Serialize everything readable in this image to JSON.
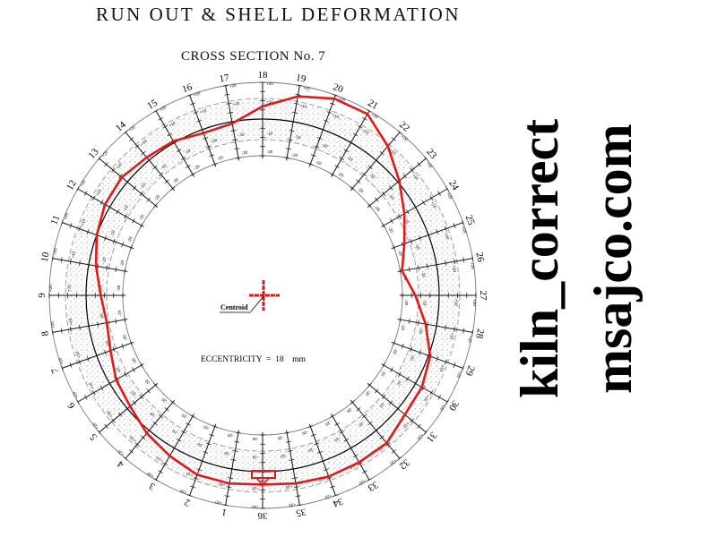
{
  "header": {
    "title": "RUN OUT & SHELL DEFORMATION",
    "subtitle": "CROSS SECTION No. 7"
  },
  "diagram": {
    "stations": [
      "1",
      "2",
      "3",
      "4",
      "5",
      "6",
      "7",
      "8",
      "9",
      "10",
      "11",
      "12",
      "13",
      "14",
      "15",
      "16",
      "17",
      "18",
      "19",
      "20",
      "21",
      "22",
      "23",
      "24",
      "25",
      "26",
      "27",
      "28",
      "29",
      "30",
      "31",
      "32",
      "33",
      "34",
      "35",
      "36"
    ],
    "tick_labels": [
      "+20",
      "+10",
      "-10",
      "-20"
    ],
    "deviation_mm_by_station": [
      8,
      8,
      5,
      2,
      -2,
      -4,
      -8,
      -10,
      -8,
      -4,
      0,
      3,
      4,
      2,
      1,
      -2,
      -1,
      7,
      14,
      18,
      18,
      10,
      1,
      -7,
      -14,
      -19,
      -13,
      -6,
      1,
      4,
      5,
      9,
      9,
      9,
      8,
      7
    ],
    "centroid_label": "Centroid",
    "eccentricity_text": "ECCENTRICITY  =  18    mm",
    "colors": {
      "profile": "#e0191b",
      "grid": "#555555",
      "reference": "#000000",
      "stipple": "#9a9a9a"
    }
  },
  "watermark": {
    "line1": "kiln_correct",
    "line2": "msajco.com"
  }
}
